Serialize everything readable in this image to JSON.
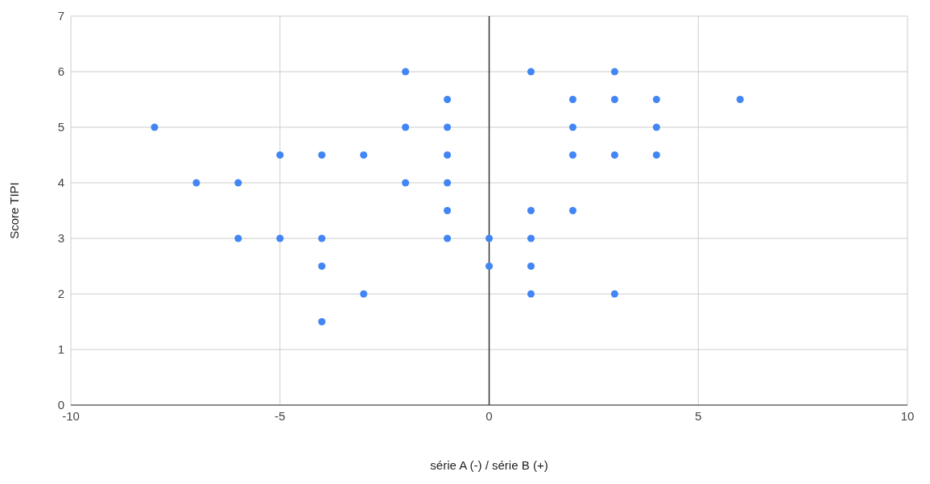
{
  "chart_data": {
    "type": "scatter",
    "xlabel": "série A (-) / série B (+)",
    "ylabel": "Score TIPI",
    "x": [
      -8,
      -7,
      -6,
      -6,
      -5,
      -5,
      -4,
      -4,
      -4,
      -4,
      -3,
      -3,
      -2,
      -2,
      -2,
      -1,
      -1,
      -1,
      -1,
      -1,
      -1,
      0,
      0,
      1,
      1,
      1,
      1,
      1,
      2,
      2,
      2,
      2,
      3,
      3,
      3,
      3,
      4,
      4,
      4,
      6
    ],
    "series": [
      {
        "color": "#4285f4",
        "values": [
          5,
          4,
          4,
          3,
          4.5,
          3,
          4.5,
          3,
          2.5,
          1.5,
          4.5,
          2,
          6,
          5,
          4,
          5.5,
          5,
          4.5,
          4,
          3.5,
          3,
          3,
          2.5,
          6,
          3.5,
          3,
          2.5,
          2,
          5.5,
          5,
          4.5,
          3.5,
          6,
          5.5,
          4.5,
          2,
          5.5,
          5,
          4.5,
          5.5
        ]
      }
    ],
    "xlim": [
      -10,
      10
    ],
    "xticks": [
      -10,
      -5,
      0,
      5,
      10
    ],
    "ylim": [
      0,
      7
    ],
    "yticks": [
      0,
      1,
      2,
      3,
      4,
      5,
      6,
      7
    ],
    "ref_lines": [
      {
        "axis": "x",
        "value": 0,
        "color": "#333333"
      }
    ],
    "grid": true,
    "marker": "circle"
  }
}
